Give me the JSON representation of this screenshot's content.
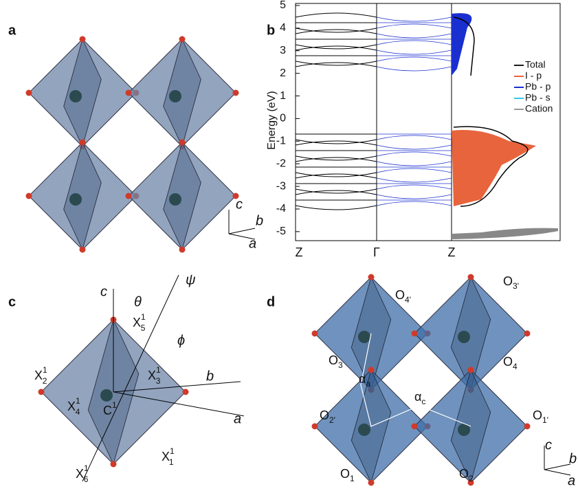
{
  "panel_labels": [
    "a",
    "b",
    "c",
    "d"
  ],
  "panel_a": {
    "axes": [
      "c",
      "b",
      "a"
    ]
  },
  "panel_b": {
    "ylabel": "Energy (eV)",
    "ylim": [
      -5.4,
      5
    ],
    "yticks": [
      -5,
      -4,
      -3,
      -2,
      -1,
      0,
      1,
      2,
      3,
      4,
      5
    ],
    "xticks": [
      "Z",
      "Γ",
      "Z"
    ],
    "legend": [
      {
        "name": "Total",
        "color": "#1a1a1a"
      },
      {
        "name": "I - p",
        "color": "#e8643c"
      },
      {
        "name": "Pb - p",
        "color": "#1a2fd0"
      },
      {
        "name": "Pb - s",
        "color": "#30c8e8"
      },
      {
        "name": "Cation",
        "color": "#999999"
      }
    ]
  },
  "panel_c": {
    "axes": [
      "c",
      "b",
      "a"
    ],
    "angles": [
      "θ",
      "ψ",
      "ϕ"
    ],
    "atoms": [
      {
        "base": "X",
        "sub": "5",
        "sup": "1"
      },
      {
        "base": "X",
        "sub": "2",
        "sup": "1"
      },
      {
        "base": "X",
        "sub": "3",
        "sup": "1"
      },
      {
        "base": "X",
        "sub": "4",
        "sup": "1"
      },
      {
        "base": "C",
        "sup": "1"
      },
      {
        "base": "X",
        "sub": "1",
        "sup": "1"
      },
      {
        "base": "X",
        "sub": "6",
        "sup": "1"
      }
    ]
  },
  "panel_d": {
    "axes": [
      "c",
      "b",
      "a"
    ],
    "atoms": [
      {
        "base": "O",
        "sub": "4'"
      },
      {
        "base": "O",
        "sub": "3'"
      },
      {
        "base": "O",
        "sub": "3"
      },
      {
        "base": "O",
        "sub": "4"
      },
      {
        "base": "O",
        "sub": "2'"
      },
      {
        "base": "O",
        "sub": "1'"
      },
      {
        "base": "O",
        "sub": "1"
      },
      {
        "base": "O",
        "sub": "2"
      }
    ],
    "angles": [
      {
        "base": "α",
        "sub": "a"
      },
      {
        "base": "α",
        "sub": "c"
      }
    ]
  }
}
